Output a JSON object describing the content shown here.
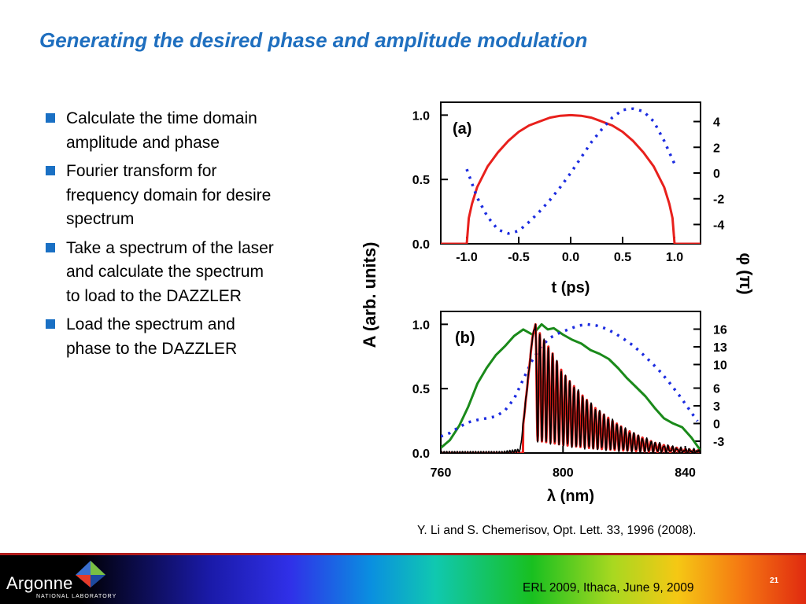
{
  "title": "Generating the desired phase and amplitude modulation",
  "bullets": [
    {
      "text": "Calculate the time domain amplitude and phase"
    },
    {
      "text": "Fourier transform for frequency domain for desire spectrum"
    },
    {
      "text": "Take a spectrum of the laser and calculate the spectrum to load to the DAZZLER"
    },
    {
      "text": "Load the spectrum and phase to the DAZZLER"
    }
  ],
  "figure": {
    "shared_ylabel": "A (arb. units)",
    "shared_y2label": "φ (π)"
  },
  "chart_data": [
    {
      "type": "line",
      "panel_label": "(a)",
      "xlabel": "t (ps)",
      "ylabel": "A (arb. units)",
      "y2label": "φ (π)",
      "xlim": [
        -1.25,
        1.25
      ],
      "ylim": [
        0,
        1.1
      ],
      "y2lim": [
        -5.5,
        5.5
      ],
      "xticks": [
        "-1.0",
        "-0.5",
        "0.0",
        "0.5",
        "1.0"
      ],
      "yticks": [
        "1.0",
        "0.5",
        "0.0"
      ],
      "y2ticks": [
        "4",
        "2",
        "0",
        "-2",
        "-4"
      ],
      "grid": false,
      "colors": {
        "amplitude": "#e8201c",
        "phase": "#1c2ce0"
      },
      "series": [
        {
          "role": "amplitude",
          "style": "solid",
          "x": [
            -1.25,
            -1.02,
            -1.0,
            -0.98,
            -0.95,
            -0.9,
            -0.8,
            -0.7,
            -0.6,
            -0.5,
            -0.4,
            -0.3,
            -0.2,
            -0.1,
            0.0,
            0.1,
            0.2,
            0.3,
            0.4,
            0.5,
            0.6,
            0.7,
            0.8,
            0.9,
            0.95,
            0.98,
            1.0,
            1.02,
            1.25
          ],
          "y": [
            0.0,
            0.0,
            0.0,
            0.2,
            0.31,
            0.44,
            0.6,
            0.71,
            0.8,
            0.87,
            0.92,
            0.95,
            0.98,
            0.995,
            1.0,
            0.995,
            0.98,
            0.95,
            0.92,
            0.87,
            0.8,
            0.71,
            0.6,
            0.44,
            0.31,
            0.2,
            0.0,
            0.0,
            0.0
          ]
        },
        {
          "role": "phase",
          "style": "dotted",
          "x": [
            -1.0,
            -0.9,
            -0.8,
            -0.7,
            -0.6,
            -0.5,
            -0.4,
            -0.3,
            -0.2,
            -0.1,
            0.0,
            0.1,
            0.2,
            0.3,
            0.4,
            0.5,
            0.6,
            0.7,
            0.8,
            0.9,
            1.0
          ],
          "y": [
            0.3,
            -1.9,
            -3.4,
            -4.4,
            -4.7,
            -4.5,
            -3.8,
            -3.0,
            -2.1,
            -1.1,
            0.0,
            1.2,
            2.4,
            3.4,
            4.3,
            4.9,
            5.0,
            4.8,
            4.0,
            2.5,
            0.7
          ]
        }
      ]
    },
    {
      "type": "line",
      "panel_label": "(b)",
      "xlabel": "λ (nm)",
      "ylabel": "A (arb. units)",
      "y2label": "φ (π)",
      "xlim": [
        760,
        845
      ],
      "ylim": [
        0,
        1.1
      ],
      "y2lim": [
        -5,
        19
      ],
      "xticks": [
        "760",
        "800",
        "840"
      ],
      "yticks": [
        "1.0",
        "0.5",
        "0.0"
      ],
      "y2ticks": [
        "16",
        "13",
        "10",
        "6",
        "3",
        "0",
        "-3"
      ],
      "grid": false,
      "colors": {
        "target": "#e8201c",
        "measured": "#000000",
        "laser": "#1a8a1a",
        "phase": "#1c2ce0"
      },
      "series": [
        {
          "role": "laser",
          "style": "solid",
          "x": [
            760,
            763,
            766,
            769,
            772,
            775,
            778,
            781,
            784,
            787,
            790,
            793,
            795,
            797,
            800,
            803,
            806,
            809,
            812,
            815,
            818,
            821,
            824,
            827,
            830,
            833,
            836,
            839,
            842,
            845
          ],
          "y": [
            0.04,
            0.1,
            0.21,
            0.36,
            0.54,
            0.66,
            0.76,
            0.83,
            0.91,
            0.96,
            0.92,
            1.0,
            0.96,
            0.97,
            0.92,
            0.88,
            0.85,
            0.8,
            0.77,
            0.73,
            0.66,
            0.58,
            0.51,
            0.44,
            0.35,
            0.27,
            0.23,
            0.2,
            0.12,
            0.02
          ]
        },
        {
          "role": "phase",
          "style": "dotted",
          "x": [
            760,
            763,
            766,
            769,
            772,
            775,
            778,
            781,
            784,
            787,
            790,
            793,
            796,
            799,
            802,
            805,
            808,
            811,
            814,
            817,
            820,
            823,
            826,
            829,
            832,
            835,
            838,
            841,
            844
          ],
          "y": [
            -2.2,
            -1.6,
            -0.6,
            0.2,
            0.6,
            0.9,
            1.2,
            2.2,
            4.2,
            7.5,
            10.8,
            13.2,
            14.6,
            15.4,
            16.0,
            16.6,
            16.8,
            16.6,
            16.1,
            15.3,
            14.3,
            13.2,
            11.8,
            10.3,
            8.7,
            6.8,
            4.8,
            2.6,
            0.4
          ]
        },
        {
          "role": "target",
          "style": "solid",
          "envelope": {
            "onset": 787,
            "peak_wavelength": 791,
            "peak": 1.0,
            "end": 845,
            "oscillation_period_nm": 1.4
          },
          "x": [
            760,
            786,
            788,
            790,
            791,
            793,
            796,
            800,
            805,
            810,
            815,
            820,
            825,
            830,
            835,
            840,
            845
          ],
          "y": [
            0.0,
            0.0,
            0.45,
            0.9,
            1.0,
            0.9,
            0.8,
            0.62,
            0.48,
            0.36,
            0.27,
            0.19,
            0.13,
            0.08,
            0.05,
            0.03,
            0.02
          ]
        },
        {
          "role": "measured",
          "style": "solid",
          "x": [
            760,
            770,
            780,
            786,
            788,
            790,
            791,
            793,
            796,
            800,
            805,
            810,
            815,
            820,
            825,
            830,
            835,
            840,
            845
          ],
          "y": [
            0.0,
            0.0,
            0.0,
            0.02,
            0.45,
            0.9,
            1.0,
            0.9,
            0.8,
            0.62,
            0.48,
            0.36,
            0.27,
            0.19,
            0.13,
            0.08,
            0.05,
            0.03,
            0.02
          ]
        }
      ]
    }
  ],
  "citation": "Y. Li and S. Chemerisov, Opt. Lett. 33, 1996 (2008).",
  "footer": {
    "logo_text": "Argonne",
    "logo_sub": "NATIONAL LABORATORY",
    "page_number": "21",
    "event": "ERL 2009, Ithaca, June 9, 2009"
  }
}
